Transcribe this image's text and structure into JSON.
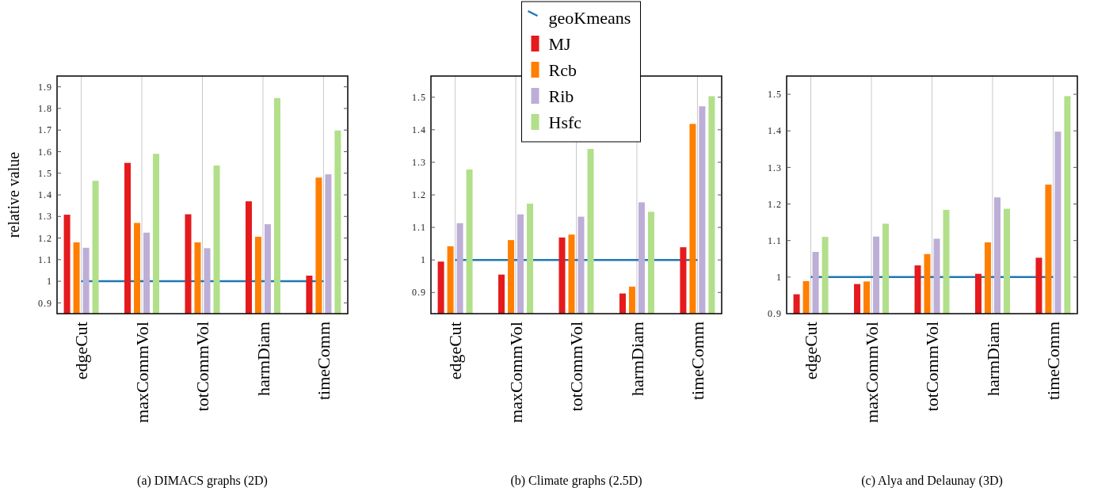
{
  "chart_data": [
    {
      "type": "bar",
      "title": "(a) DIMACS graphs (2D)",
      "ylabel": "relative value",
      "categories": [
        "edgeCut",
        "maxCommVol",
        "totCommVol",
        "harmDiam",
        "timeComm"
      ],
      "ylim": [
        0.85,
        1.95
      ],
      "yticks": [
        0.9,
        1,
        1.1,
        1.2,
        1.3,
        1.4,
        1.5,
        1.6,
        1.7,
        1.8,
        1.9
      ],
      "grid": "x",
      "legend": false,
      "series": [
        {
          "type": "line",
          "color": "#1f78b4",
          "values": [
            1,
            1,
            1,
            1,
            1
          ]
        },
        {
          "color": "#e41a1c",
          "values": [
            1.308,
            1.548,
            1.31,
            1.37,
            1.026
          ]
        },
        {
          "color": "#ff7f00",
          "values": [
            1.18,
            1.27,
            1.18,
            1.206,
            1.48
          ]
        },
        {
          "color": "#bcaed6",
          "values": [
            1.155,
            1.225,
            1.153,
            1.264,
            1.495
          ]
        },
        {
          "color": "#b2df8a",
          "values": [
            1.465,
            1.59,
            1.536,
            1.848,
            1.698
          ]
        }
      ]
    },
    {
      "type": "bar",
      "title": "(b) Climate graphs (2.5D)",
      "categories": [
        "edgeCut",
        "maxCommVol",
        "totCommVol",
        "harmDiam",
        "timeComm"
      ],
      "ylim": [
        0.835,
        1.565
      ],
      "yticks": [
        0.9,
        1,
        1.1,
        1.2,
        1.3,
        1.4,
        1.5
      ],
      "grid": "x",
      "legend": "top",
      "series": [
        {
          "type": "line",
          "name": "geoKmeans",
          "color": "#1f78b4",
          "values": [
            1,
            1,
            1,
            1,
            1
          ]
        },
        {
          "name": "MJ",
          "color": "#e41a1c",
          "values": [
            0.995,
            0.955,
            1.069,
            0.897,
            1.039
          ]
        },
        {
          "name": "Rcb",
          "color": "#ff7f00",
          "values": [
            1.042,
            1.061,
            1.078,
            0.918,
            1.418
          ]
        },
        {
          "name": "Rib",
          "color": "#bcaed6",
          "values": [
            1.113,
            1.14,
            1.133,
            1.177,
            1.472
          ]
        },
        {
          "name": "Hsfc",
          "color": "#b2df8a",
          "values": [
            1.278,
            1.173,
            1.341,
            1.148,
            1.503
          ]
        }
      ]
    },
    {
      "type": "bar",
      "title": "(c) Alya and Delaunay (3D)",
      "categories": [
        "edgeCut",
        "maxCommVol",
        "totCommVol",
        "harmDiam",
        "timeComm"
      ],
      "ylim": [
        0.9,
        1.55
      ],
      "yticks": [
        0.9,
        1,
        1.1,
        1.2,
        1.3,
        1.4,
        1.5
      ],
      "grid": "x",
      "legend": false,
      "series": [
        {
          "type": "line",
          "color": "#1f78b4",
          "values": [
            1,
            1,
            1,
            1,
            1
          ]
        },
        {
          "color": "#e41a1c",
          "values": [
            0.953,
            0.981,
            1.032,
            1.009,
            1.053
          ]
        },
        {
          "color": "#ff7f00",
          "values": [
            0.989,
            0.988,
            1.063,
            1.095,
            1.253
          ]
        },
        {
          "color": "#bcaed6",
          "values": [
            1.069,
            1.111,
            1.105,
            1.218,
            1.398
          ]
        },
        {
          "color": "#b2df8a",
          "values": [
            1.11,
            1.146,
            1.184,
            1.187,
            1.495
          ]
        }
      ]
    }
  ]
}
